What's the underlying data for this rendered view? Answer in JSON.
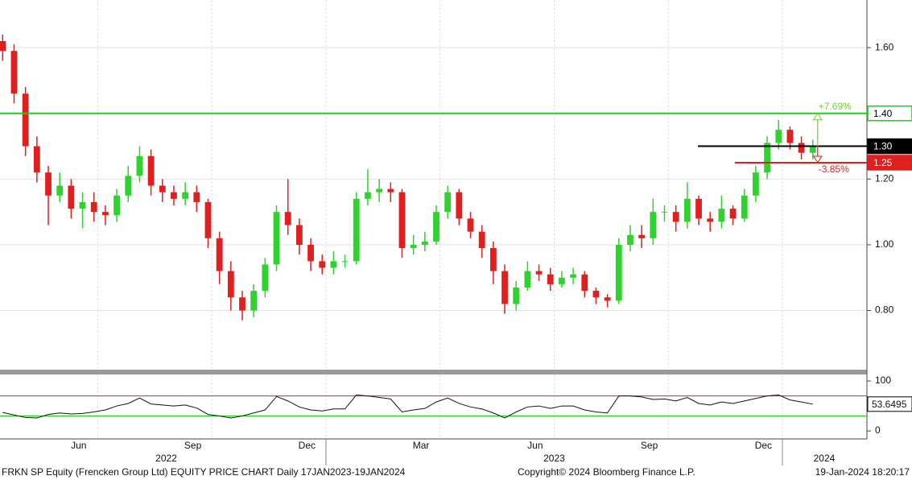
{
  "chart_data": [
    {
      "type": "candlestick",
      "x": [
        3.5,
        3.8,
        4.1,
        4.4,
        4.7,
        5.0,
        5.3,
        5.6,
        5.9,
        6.2,
        6.5,
        6.8,
        7.1,
        7.4,
        7.7,
        8.0,
        8.3,
        8.6,
        8.9,
        9.2,
        9.5,
        9.8,
        10.1,
        10.4,
        10.7,
        11.0,
        11.3,
        11.6,
        11.9,
        12.2,
        12.5,
        12.8,
        13.1,
        13.4,
        13.7,
        14.0,
        14.3,
        14.6,
        14.9,
        15.2,
        15.5,
        15.8,
        16.1,
        16.4,
        16.7,
        17.0,
        17.3,
        17.6,
        17.9,
        18.2,
        18.5,
        18.8,
        19.1,
        19.4,
        19.7,
        20.0,
        20.3,
        20.6,
        20.9,
        21.2,
        21.5,
        21.8,
        22.1,
        22.4,
        22.7,
        23.0,
        23.3,
        23.6,
        23.9,
        24.2,
        24.5,
        24.8
      ],
      "open": [
        1.62,
        1.59,
        1.46,
        1.3,
        1.22,
        1.15,
        1.18,
        1.11,
        1.13,
        1.1,
        1.09,
        1.15,
        1.21,
        1.27,
        1.18,
        1.16,
        1.14,
        1.16,
        1.13,
        1.02,
        0.92,
        0.84,
        0.8,
        0.86,
        0.94,
        1.1,
        1.06,
        1.0,
        0.95,
        0.93,
        0.95,
        0.95,
        1.14,
        1.16,
        1.17,
        1.16,
        0.99,
        1.0,
        1.01,
        1.1,
        1.16,
        1.08,
        1.04,
        0.99,
        0.92,
        0.82,
        0.87,
        0.92,
        0.91,
        0.88,
        0.9,
        0.91,
        0.86,
        0.84,
        0.83,
        1.0,
        1.03,
        1.02,
        1.1,
        1.1,
        1.07,
        1.14,
        1.08,
        1.07,
        1.11,
        1.08,
        1.15,
        1.22,
        1.31,
        1.35,
        1.31,
        1.28
      ],
      "high": [
        1.64,
        1.61,
        1.48,
        1.33,
        1.24,
        1.22,
        1.2,
        1.16,
        1.16,
        1.12,
        1.17,
        1.24,
        1.3,
        1.29,
        1.2,
        1.18,
        1.19,
        1.18,
        1.14,
        1.04,
        0.95,
        0.86,
        0.88,
        0.96,
        1.12,
        1.2,
        1.08,
        1.02,
        0.97,
        0.98,
        0.97,
        1.16,
        1.23,
        1.2,
        1.19,
        1.17,
        1.03,
        1.04,
        1.12,
        1.18,
        1.17,
        1.1,
        1.06,
        1.01,
        0.94,
        0.89,
        0.95,
        0.94,
        0.93,
        0.92,
        0.93,
        0.92,
        0.87,
        0.85,
        1.02,
        1.06,
        1.06,
        1.14,
        1.12,
        1.12,
        1.19,
        1.15,
        1.1,
        1.15,
        1.12,
        1.17,
        1.24,
        1.33,
        1.38,
        1.36,
        1.33,
        1.32
      ],
      "low": [
        1.56,
        1.43,
        1.27,
        1.19,
        1.06,
        1.13,
        1.08,
        1.05,
        1.07,
        1.06,
        1.07,
        1.13,
        1.19,
        1.15,
        1.13,
        1.12,
        1.12,
        1.1,
        0.99,
        0.88,
        0.8,
        0.77,
        0.78,
        0.84,
        0.92,
        1.03,
        0.97,
        0.92,
        0.91,
        0.91,
        0.93,
        0.94,
        1.12,
        1.13,
        1.13,
        0.96,
        0.97,
        0.98,
        1.0,
        1.08,
        1.06,
        1.02,
        0.96,
        0.88,
        0.79,
        0.8,
        0.86,
        0.89,
        0.86,
        0.87,
        0.88,
        0.84,
        0.82,
        0.81,
        0.82,
        0.98,
        0.99,
        1.0,
        1.07,
        1.04,
        1.05,
        1.06,
        1.04,
        1.05,
        1.06,
        1.07,
        1.13,
        1.2,
        1.29,
        1.29,
        1.26,
        1.26
      ],
      "close": [
        1.59,
        1.46,
        1.3,
        1.22,
        1.15,
        1.18,
        1.11,
        1.13,
        1.1,
        1.09,
        1.15,
        1.21,
        1.27,
        1.18,
        1.16,
        1.14,
        1.16,
        1.13,
        1.02,
        0.92,
        0.84,
        0.8,
        0.86,
        0.94,
        1.1,
        1.06,
        1.0,
        0.95,
        0.93,
        0.95,
        0.95,
        1.14,
        1.16,
        1.17,
        1.16,
        0.99,
        1.0,
        1.01,
        1.1,
        1.16,
        1.08,
        1.04,
        0.99,
        0.92,
        0.82,
        0.87,
        0.92,
        0.91,
        0.88,
        0.9,
        0.91,
        0.86,
        0.84,
        0.83,
        1.0,
        1.03,
        1.02,
        1.1,
        1.1,
        1.07,
        1.14,
        1.08,
        1.07,
        1.11,
        1.08,
        1.15,
        1.22,
        1.31,
        1.35,
        1.31,
        1.28,
        1.3
      ],
      "up_color": "#2fd22f",
      "down_color": "#e01f1f",
      "xlim": [
        3.43,
        26.18
      ],
      "ylim": [
        0.62,
        1.745
      ],
      "yticks": [
        {
          "value": 0.8,
          "label": "0.80"
        },
        {
          "value": 1.0,
          "label": "1.00"
        },
        {
          "value": 1.2,
          "label": "1.20"
        },
        {
          "value": 1.6,
          "label": "1.60"
        }
      ],
      "xticks": [
        {
          "value": 5.5,
          "label": "Jun"
        },
        {
          "value": 8.5,
          "label": "Sep"
        },
        {
          "value": 11.5,
          "label": "Dec"
        },
        {
          "value": 14.5,
          "label": "Mar"
        },
        {
          "value": 17.5,
          "label": "Jun"
        },
        {
          "value": 20.5,
          "label": "Sep"
        },
        {
          "value": 23.5,
          "label": "Dec"
        }
      ],
      "year_ticks": [
        {
          "value": 7.8,
          "label": "2022"
        },
        {
          "value": 18.0,
          "label": "2023"
        },
        {
          "value": 25.1,
          "label": "2024"
        }
      ],
      "year_dividers": [
        12,
        24
      ],
      "xgrid": [
        6,
        9,
        12,
        15,
        18,
        21,
        24
      ],
      "grid": true,
      "levels": [
        {
          "value": 1.4,
          "label": "1.40",
          "color": "#22cc22",
          "start": 3.43
        },
        {
          "value": 1.3,
          "label": "1.30",
          "color": "#000000",
          "start": 21.78
        },
        {
          "value": 1.25,
          "label": "1.25",
          "color": "#e01f1f",
          "start": 22.75
        }
      ],
      "annotations": [
        {
          "text": "+7.69%",
          "color": "#77cc33"
        },
        {
          "text": "-3.85%",
          "color": "#e01f1f"
        }
      ]
    },
    {
      "type": "line",
      "x": [
        3.5,
        3.8,
        4.1,
        4.4,
        4.7,
        5.0,
        5.3,
        5.6,
        5.9,
        6.2,
        6.5,
        6.8,
        7.1,
        7.4,
        7.7,
        8.0,
        8.3,
        8.6,
        8.9,
        9.2,
        9.5,
        9.8,
        10.1,
        10.4,
        10.7,
        11.0,
        11.3,
        11.6,
        11.9,
        12.2,
        12.5,
        12.8,
        13.1,
        13.4,
        13.7,
        14.0,
        14.3,
        14.6,
        14.9,
        15.2,
        15.5,
        15.8,
        16.1,
        16.4,
        16.7,
        17.0,
        17.3,
        17.6,
        17.9,
        18.2,
        18.5,
        18.8,
        19.1,
        19.4,
        19.7,
        20.0,
        20.3,
        20.6,
        20.9,
        21.2,
        21.5,
        21.8,
        22.1,
        22.4,
        22.7,
        23.0,
        23.3,
        23.6,
        23.9,
        24.2,
        24.5,
        24.8
      ],
      "values": [
        37,
        32,
        27,
        26,
        33,
        36,
        34,
        35,
        38,
        42,
        50,
        55,
        66,
        54,
        52,
        50,
        52,
        46,
        33,
        30,
        26,
        30,
        36,
        42,
        69,
        60,
        48,
        42,
        40,
        44,
        44,
        72,
        70,
        67,
        64,
        38,
        42,
        45,
        58,
        66,
        55,
        48,
        44,
        36,
        26,
        38,
        48,
        50,
        45,
        50,
        50,
        42,
        38,
        36,
        70,
        70,
        68,
        63,
        64,
        60,
        67,
        55,
        52,
        58,
        55,
        60,
        65,
        70,
        72,
        62,
        58,
        53.6495
      ],
      "color": "#111111",
      "xlim": [
        3.43,
        26.18
      ],
      "ylim": [
        -16,
        113
      ],
      "yticks": [
        0,
        100
      ],
      "levels": [
        {
          "value": 70,
          "color": "#e01f1f"
        },
        {
          "value": 30,
          "color": "#22cc22"
        }
      ]
    }
  ],
  "footer": {
    "left": "FRKN SP Equity (Frencken Group Ltd) EQUITY PRICE CHART  Daily 17JAN2023-19JAN2024",
    "center": "Copyright© 2024 Bloomberg Finance L.P.",
    "right": "19-Jan-2024 18:20:17"
  }
}
